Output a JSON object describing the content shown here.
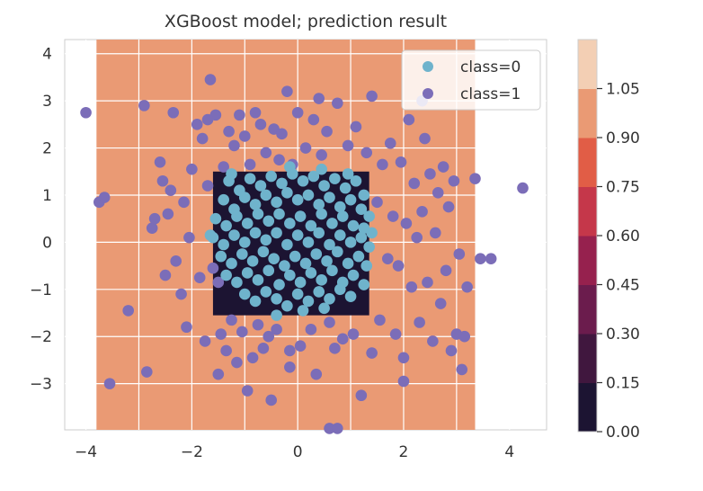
{
  "chart_data": {
    "type": "scatter",
    "title": "XGBoost model; prediction result",
    "xlabel": "",
    "ylabel": "",
    "xlim": [
      -4.4,
      4.7
    ],
    "ylim": [
      -3.98,
      4.3
    ],
    "x_ticks": [
      -4,
      -2,
      0,
      2,
      4
    ],
    "y_ticks": [
      -3,
      -2,
      -1,
      0,
      1,
      2,
      3,
      4
    ],
    "grid": true,
    "legend_position": "top-right",
    "background_region": {
      "x_range": [
        -3.8,
        3.35
      ],
      "y_range": [
        -3.98,
        4.3
      ],
      "predicted_value": 1.05
    },
    "decision_region": {
      "description": "predicted class 0 square",
      "x_range": [
        -1.6,
        1.35
      ],
      "y_range": [
        -1.55,
        1.5
      ],
      "predicted_value": 0.0
    },
    "series": [
      {
        "name": "class=0",
        "color": "#6fb3cc",
        "points": [
          [
            -1.3,
            1.3
          ],
          [
            -1.1,
            1.1
          ],
          [
            -0.9,
            1.35
          ],
          [
            -0.7,
            1.2
          ],
          [
            -0.5,
            1.4
          ],
          [
            -0.3,
            1.25
          ],
          [
            -0.1,
            1.45
          ],
          [
            0.1,
            1.3
          ],
          [
            0.3,
            1.4
          ],
          [
            0.5,
            1.2
          ],
          [
            0.7,
            1.35
          ],
          [
            0.9,
            1.15
          ],
          [
            1.1,
            1.3
          ],
          [
            1.25,
            1.0
          ],
          [
            -1.4,
            0.9
          ],
          [
            -1.2,
            0.7
          ],
          [
            -1.0,
            0.95
          ],
          [
            -0.8,
            0.8
          ],
          [
            -0.6,
            1.0
          ],
          [
            -0.4,
            0.85
          ],
          [
            -0.2,
            1.05
          ],
          [
            0.0,
            0.9
          ],
          [
            0.2,
            1.0
          ],
          [
            0.4,
            0.8
          ],
          [
            0.6,
            0.95
          ],
          [
            0.8,
            0.75
          ],
          [
            1.0,
            0.9
          ],
          [
            1.2,
            0.7
          ],
          [
            1.35,
            0.55
          ],
          [
            -1.55,
            0.5
          ],
          [
            -1.35,
            0.35
          ],
          [
            -1.15,
            0.55
          ],
          [
            -0.95,
            0.4
          ],
          [
            -0.75,
            0.6
          ],
          [
            -0.55,
            0.45
          ],
          [
            -0.35,
            0.6
          ],
          [
            -0.15,
            0.4
          ],
          [
            0.05,
            0.55
          ],
          [
            0.25,
            0.35
          ],
          [
            0.45,
            0.6
          ],
          [
            0.65,
            0.4
          ],
          [
            0.85,
            0.55
          ],
          [
            1.05,
            0.35
          ],
          [
            1.25,
            0.3
          ],
          [
            -1.6,
            0.1
          ],
          [
            -1.4,
            -0.05
          ],
          [
            -1.2,
            0.15
          ],
          [
            -1.0,
            0.0
          ],
          [
            -0.8,
            0.2
          ],
          [
            -0.6,
            0.05
          ],
          [
            -0.4,
            0.2
          ],
          [
            -0.2,
            -0.05
          ],
          [
            0.0,
            0.15
          ],
          [
            0.2,
            0.0
          ],
          [
            0.4,
            0.2
          ],
          [
            0.6,
            -0.05
          ],
          [
            0.8,
            0.15
          ],
          [
            1.0,
            0.0
          ],
          [
            1.2,
            0.1
          ],
          [
            1.35,
            -0.1
          ],
          [
            -1.45,
            -0.3
          ],
          [
            -1.25,
            -0.45
          ],
          [
            -1.05,
            -0.25
          ],
          [
            -0.85,
            -0.4
          ],
          [
            -0.65,
            -0.2
          ],
          [
            -0.45,
            -0.35
          ],
          [
            -0.25,
            -0.5
          ],
          [
            -0.05,
            -0.3
          ],
          [
            0.15,
            -0.45
          ],
          [
            0.35,
            -0.25
          ],
          [
            0.55,
            -0.4
          ],
          [
            0.75,
            -0.2
          ],
          [
            0.95,
            -0.45
          ],
          [
            1.15,
            -0.3
          ],
          [
            1.3,
            -0.5
          ],
          [
            -1.35,
            -0.7
          ],
          [
            -1.15,
            -0.85
          ],
          [
            -0.95,
            -0.65
          ],
          [
            -0.75,
            -0.8
          ],
          [
            -0.55,
            -0.6
          ],
          [
            -0.35,
            -0.9
          ],
          [
            -0.15,
            -0.7
          ],
          [
            0.05,
            -0.85
          ],
          [
            0.25,
            -0.65
          ],
          [
            0.45,
            -0.8
          ],
          [
            0.65,
            -0.6
          ],
          [
            0.85,
            -0.85
          ],
          [
            1.05,
            -0.7
          ],
          [
            1.25,
            -0.9
          ],
          [
            -1.0,
            -1.1
          ],
          [
            -0.8,
            -1.25
          ],
          [
            -0.6,
            -1.05
          ],
          [
            -0.4,
            -1.2
          ],
          [
            -0.2,
            -1.35
          ],
          [
            0.0,
            -1.1
          ],
          [
            0.2,
            -1.25
          ],
          [
            0.4,
            -1.05
          ],
          [
            0.6,
            -1.2
          ],
          [
            0.8,
            -1.0
          ],
          [
            1.0,
            -1.15
          ],
          [
            -0.4,
            -1.55
          ],
          [
            0.1,
            -1.45
          ],
          [
            0.5,
            -1.4
          ],
          [
            -0.15,
            1.6
          ],
          [
            0.45,
            1.55
          ],
          [
            -1.25,
            1.45
          ],
          [
            0.95,
            1.45
          ],
          [
            1.4,
            0.2
          ],
          [
            -1.65,
            0.15
          ]
        ]
      },
      {
        "name": "class=1",
        "color": "#7b6db8",
        "points": [
          [
            -4.0,
            2.75
          ],
          [
            -3.75,
            0.85
          ],
          [
            -3.65,
            0.95
          ],
          [
            -3.55,
            -3.0
          ],
          [
            -3.2,
            -1.45
          ],
          [
            -2.9,
            2.9
          ],
          [
            -2.85,
            -2.75
          ],
          [
            -2.75,
            0.3
          ],
          [
            -2.7,
            0.5
          ],
          [
            -2.6,
            1.7
          ],
          [
            -2.55,
            1.3
          ],
          [
            -2.45,
            0.6
          ],
          [
            -2.4,
            1.1
          ],
          [
            -2.35,
            2.75
          ],
          [
            -2.3,
            -0.4
          ],
          [
            -2.2,
            -1.1
          ],
          [
            -2.15,
            0.85
          ],
          [
            -2.1,
            -1.8
          ],
          [
            -2.05,
            0.1
          ],
          [
            -2.0,
            1.55
          ],
          [
            -1.9,
            2.5
          ],
          [
            -1.85,
            -0.75
          ],
          [
            -1.8,
            2.2
          ],
          [
            -1.75,
            -2.1
          ],
          [
            -1.7,
            1.2
          ],
          [
            -1.65,
            3.45
          ],
          [
            -1.6,
            -0.55
          ],
          [
            -1.55,
            2.7
          ],
          [
            -1.5,
            -2.8
          ],
          [
            -1.45,
            -1.95
          ],
          [
            -1.4,
            1.6
          ],
          [
            -1.35,
            -2.3
          ],
          [
            -1.3,
            2.35
          ],
          [
            -1.25,
            -1.65
          ],
          [
            -1.2,
            2.05
          ],
          [
            -1.15,
            -2.55
          ],
          [
            -1.1,
            2.7
          ],
          [
            -1.05,
            -1.9
          ],
          [
            -1.0,
            2.25
          ],
          [
            -0.95,
            -3.15
          ],
          [
            -0.9,
            1.65
          ],
          [
            -0.85,
            -2.45
          ],
          [
            -0.8,
            2.75
          ],
          [
            -0.75,
            -1.75
          ],
          [
            -0.7,
            2.5
          ],
          [
            -0.65,
            -2.25
          ],
          [
            -0.6,
            1.9
          ],
          [
            -0.55,
            -2.0
          ],
          [
            -0.5,
            -3.35
          ],
          [
            -0.45,
            2.4
          ],
          [
            -0.4,
            -1.85
          ],
          [
            -0.35,
            1.75
          ],
          [
            -0.3,
            2.3
          ],
          [
            -0.2,
            3.2
          ],
          [
            -0.15,
            -2.3
          ],
          [
            -0.1,
            1.65
          ],
          [
            0.0,
            2.75
          ],
          [
            0.05,
            -2.2
          ],
          [
            0.15,
            2.0
          ],
          [
            0.25,
            -1.85
          ],
          [
            0.3,
            2.6
          ],
          [
            0.35,
            -2.8
          ],
          [
            0.45,
            1.85
          ],
          [
            0.55,
            2.35
          ],
          [
            0.6,
            -1.7
          ],
          [
            0.7,
            -2.25
          ],
          [
            0.75,
            2.95
          ],
          [
            0.85,
            -2.05
          ],
          [
            0.95,
            2.05
          ],
          [
            1.05,
            -1.95
          ],
          [
            1.1,
            2.45
          ],
          [
            1.2,
            -3.25
          ],
          [
            1.3,
            1.9
          ],
          [
            1.4,
            -2.35
          ],
          [
            1.5,
            0.85
          ],
          [
            1.55,
            -1.65
          ],
          [
            1.6,
            1.65
          ],
          [
            1.7,
            -0.35
          ],
          [
            1.75,
            2.1
          ],
          [
            1.8,
            0.55
          ],
          [
            1.85,
            -1.95
          ],
          [
            1.9,
            -0.5
          ],
          [
            1.95,
            1.7
          ],
          [
            2.0,
            -2.45
          ],
          [
            2.05,
            0.4
          ],
          [
            2.1,
            2.6
          ],
          [
            2.15,
            -0.95
          ],
          [
            2.2,
            1.25
          ],
          [
            2.25,
            0.1
          ],
          [
            2.3,
            -1.7
          ],
          [
            2.35,
            0.65
          ],
          [
            2.4,
            2.2
          ],
          [
            2.45,
            -0.85
          ],
          [
            2.5,
            1.45
          ],
          [
            2.55,
            -2.1
          ],
          [
            2.6,
            0.2
          ],
          [
            2.65,
            1.05
          ],
          [
            2.7,
            -1.3
          ],
          [
            2.75,
            1.6
          ],
          [
            2.8,
            -0.6
          ],
          [
            2.85,
            0.75
          ],
          [
            2.9,
            -2.3
          ],
          [
            2.95,
            1.3
          ],
          [
            3.0,
            -1.95
          ],
          [
            3.05,
            -0.25
          ],
          [
            3.1,
            -2.7
          ],
          [
            3.15,
            -2.0
          ],
          [
            3.2,
            -0.95
          ],
          [
            3.35,
            1.35
          ],
          [
            3.45,
            -0.35
          ],
          [
            3.65,
            -0.35
          ],
          [
            4.25,
            1.15
          ],
          [
            2.35,
            3.0
          ],
          [
            1.4,
            3.1
          ],
          [
            -1.7,
            2.6
          ],
          [
            0.6,
            -3.95
          ],
          [
            0.75,
            -3.95
          ],
          [
            2.0,
            -2.95
          ],
          [
            -2.5,
            -0.7
          ],
          [
            -1.5,
            -0.85
          ],
          [
            -0.15,
            -2.65
          ],
          [
            0.4,
            3.05
          ]
        ]
      }
    ],
    "legend": [
      "class=0",
      "class=1"
    ],
    "colorbar": {
      "ticks": [
        "0.00",
        "0.15",
        "0.30",
        "0.45",
        "0.60",
        "0.75",
        "0.90",
        "1.05"
      ],
      "levels": [
        0.0,
        0.15,
        0.3,
        0.45,
        0.6,
        0.75,
        0.9,
        1.05
      ],
      "colors": [
        "#1c1432",
        "#40173e",
        "#6b1c4d",
        "#96214e",
        "#c5374a",
        "#e15d46",
        "#ea9a74",
        "#f3cfb4"
      ]
    }
  }
}
